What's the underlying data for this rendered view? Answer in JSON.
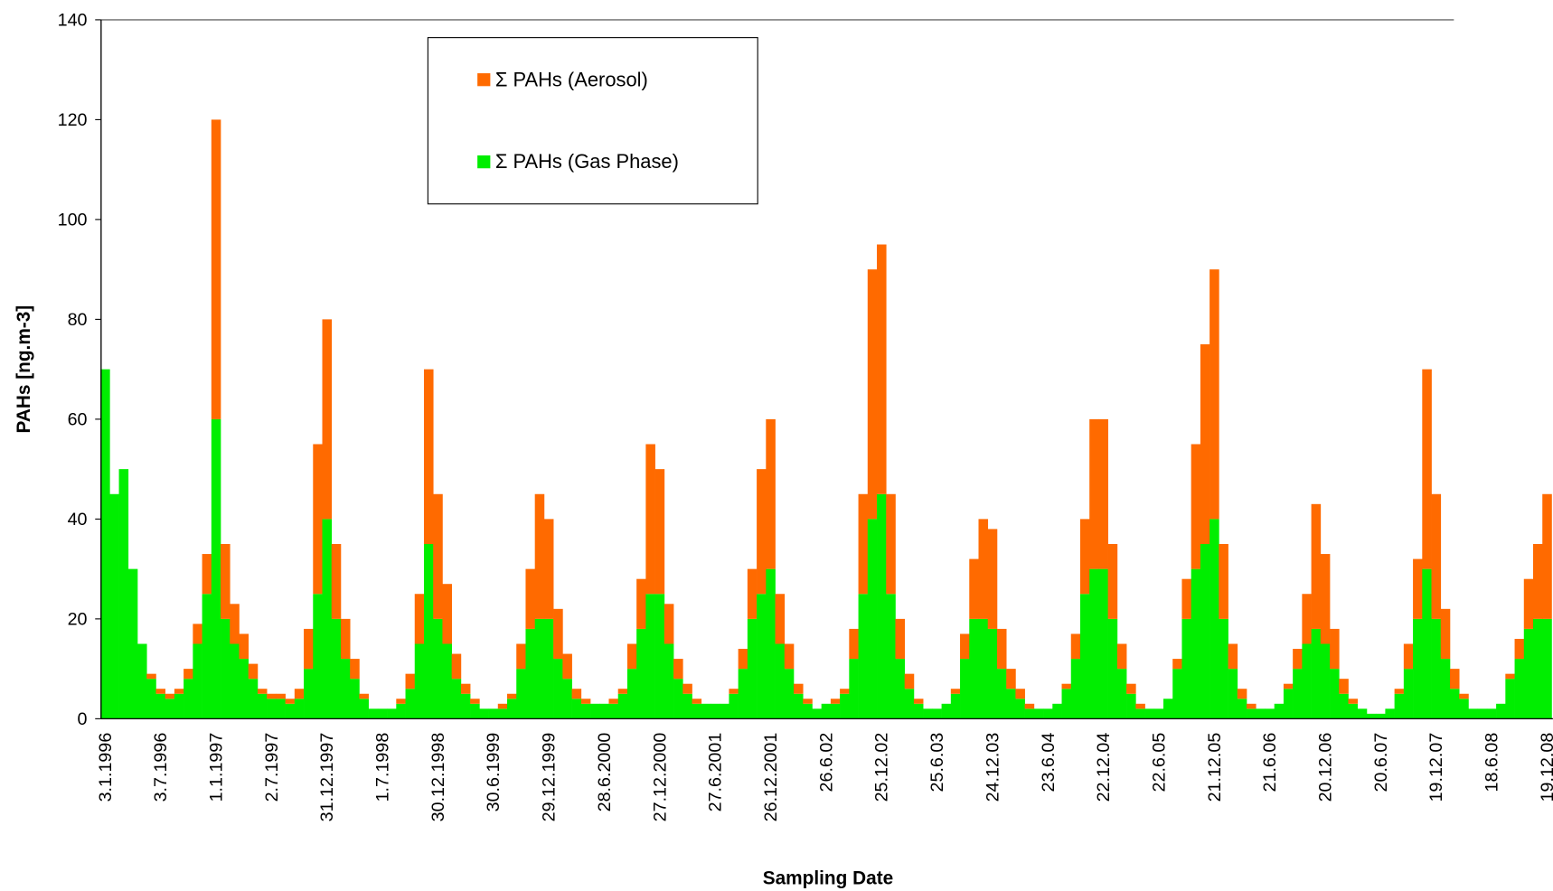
{
  "chart_data": {
    "type": "stacked-bar",
    "x_label": "Sampling Date",
    "y_label": "PAHs [ng.m-3]",
    "categories": [
      "3.1.1996",
      null,
      null,
      null,
      null,
      null,
      "3.7.1996",
      null,
      null,
      null,
      null,
      null,
      "1.1.1997",
      null,
      null,
      null,
      null,
      null,
      "2.7.1997",
      null,
      null,
      null,
      null,
      null,
      "31.12.1997",
      null,
      null,
      null,
      null,
      null,
      "1.7.1998",
      null,
      null,
      null,
      null,
      null,
      "30.12.1998",
      null,
      null,
      null,
      null,
      null,
      "30.6.1999",
      null,
      null,
      null,
      null,
      null,
      "29.12.1999",
      null,
      null,
      null,
      null,
      null,
      "28.6.2000",
      null,
      null,
      null,
      null,
      null,
      "27.12.2000",
      null,
      null,
      null,
      null,
      null,
      "27.6.2001",
      null,
      null,
      null,
      null,
      null,
      "26.12.2001",
      null,
      null,
      null,
      null,
      null,
      "26.6.02",
      null,
      null,
      null,
      null,
      null,
      "25.12.02",
      null,
      null,
      null,
      null,
      null,
      "25.6.03",
      null,
      null,
      null,
      null,
      null,
      "24.12.03",
      null,
      null,
      null,
      null,
      null,
      "23.6.04",
      null,
      null,
      null,
      null,
      null,
      "22.12.04",
      null,
      null,
      null,
      null,
      null,
      "22.6.05",
      null,
      null,
      null,
      null,
      null,
      "21.12.05",
      null,
      null,
      null,
      null,
      null,
      "21.6.06",
      null,
      null,
      null,
      null,
      null,
      "20.12.06",
      null,
      null,
      null,
      null,
      null,
      "20.6.07",
      null,
      null,
      null,
      null,
      null,
      "19.12.07",
      null,
      null,
      null,
      null,
      null,
      "18.6.08",
      null,
      null,
      null,
      null,
      null,
      "19.12.08"
    ],
    "series": [
      {
        "name": "Σ PAHs  (Gas Phase)",
        "color": "#00ee00",
        "values": [
          70,
          45,
          50,
          30,
          15,
          8,
          5,
          4,
          5,
          8,
          15,
          25,
          60,
          20,
          15,
          12,
          8,
          5,
          4,
          4,
          3,
          4,
          10,
          25,
          40,
          20,
          12,
          8,
          4,
          2,
          2,
          2,
          3,
          6,
          15,
          35,
          20,
          15,
          8,
          5,
          3,
          2,
          2,
          2,
          4,
          10,
          18,
          20,
          20,
          12,
          8,
          4,
          3,
          3,
          3,
          3,
          5,
          10,
          18,
          25,
          25,
          15,
          8,
          5,
          3,
          3,
          3,
          3,
          5,
          10,
          20,
          25,
          30,
          15,
          10,
          5,
          3,
          2,
          3,
          3,
          5,
          12,
          25,
          40,
          45,
          25,
          12,
          6,
          3,
          2,
          2,
          3,
          5,
          12,
          20,
          20,
          18,
          10,
          6,
          4,
          2,
          2,
          2,
          3,
          6,
          12,
          25,
          30,
          30,
          20,
          10,
          5,
          2,
          2,
          2,
          4,
          10,
          20,
          30,
          35,
          40,
          20,
          10,
          4,
          2,
          2,
          2,
          3,
          6,
          10,
          15,
          18,
          15,
          10,
          5,
          3,
          2,
          1,
          1,
          2,
          5,
          10,
          20,
          30,
          20,
          12,
          6,
          4,
          2,
          2,
          2,
          3,
          8,
          12,
          18,
          20,
          20
        ]
      },
      {
        "name": "Σ PAHs  (Aerosol)",
        "color": "#ff6a00",
        "values": [
          0,
          0,
          0,
          0,
          0,
          1,
          1,
          1,
          1,
          2,
          4,
          8,
          60,
          15,
          8,
          5,
          3,
          1,
          1,
          1,
          1,
          2,
          8,
          30,
          40,
          15,
          8,
          4,
          1,
          0,
          0,
          0,
          1,
          3,
          10,
          35,
          25,
          12,
          5,
          2,
          1,
          0,
          0,
          1,
          1,
          5,
          12,
          25,
          20,
          10,
          5,
          2,
          1,
          0,
          0,
          1,
          1,
          5,
          10,
          30,
          25,
          8,
          4,
          2,
          1,
          0,
          0,
          0,
          1,
          4,
          10,
          25,
          30,
          10,
          5,
          2,
          1,
          0,
          0,
          1,
          1,
          6,
          20,
          50,
          50,
          20,
          8,
          3,
          1,
          0,
          0,
          0,
          1,
          5,
          12,
          20,
          20,
          8,
          4,
          2,
          1,
          0,
          0,
          0,
          1,
          5,
          15,
          30,
          30,
          15,
          5,
          2,
          1,
          0,
          0,
          0,
          2,
          8,
          25,
          40,
          50,
          15,
          5,
          2,
          1,
          0,
          0,
          0,
          1,
          4,
          10,
          25,
          18,
          8,
          3,
          1,
          0,
          0,
          0,
          0,
          1,
          5,
          12,
          40,
          25,
          10,
          4,
          1,
          0,
          0,
          0,
          0,
          1,
          4,
          10,
          15,
          25
        ]
      }
    ],
    "ylim": [
      0,
      140
    ],
    "yticks": [
      0,
      20,
      40,
      60,
      80,
      100,
      120,
      140
    ],
    "grid": false,
    "legend": "top"
  }
}
